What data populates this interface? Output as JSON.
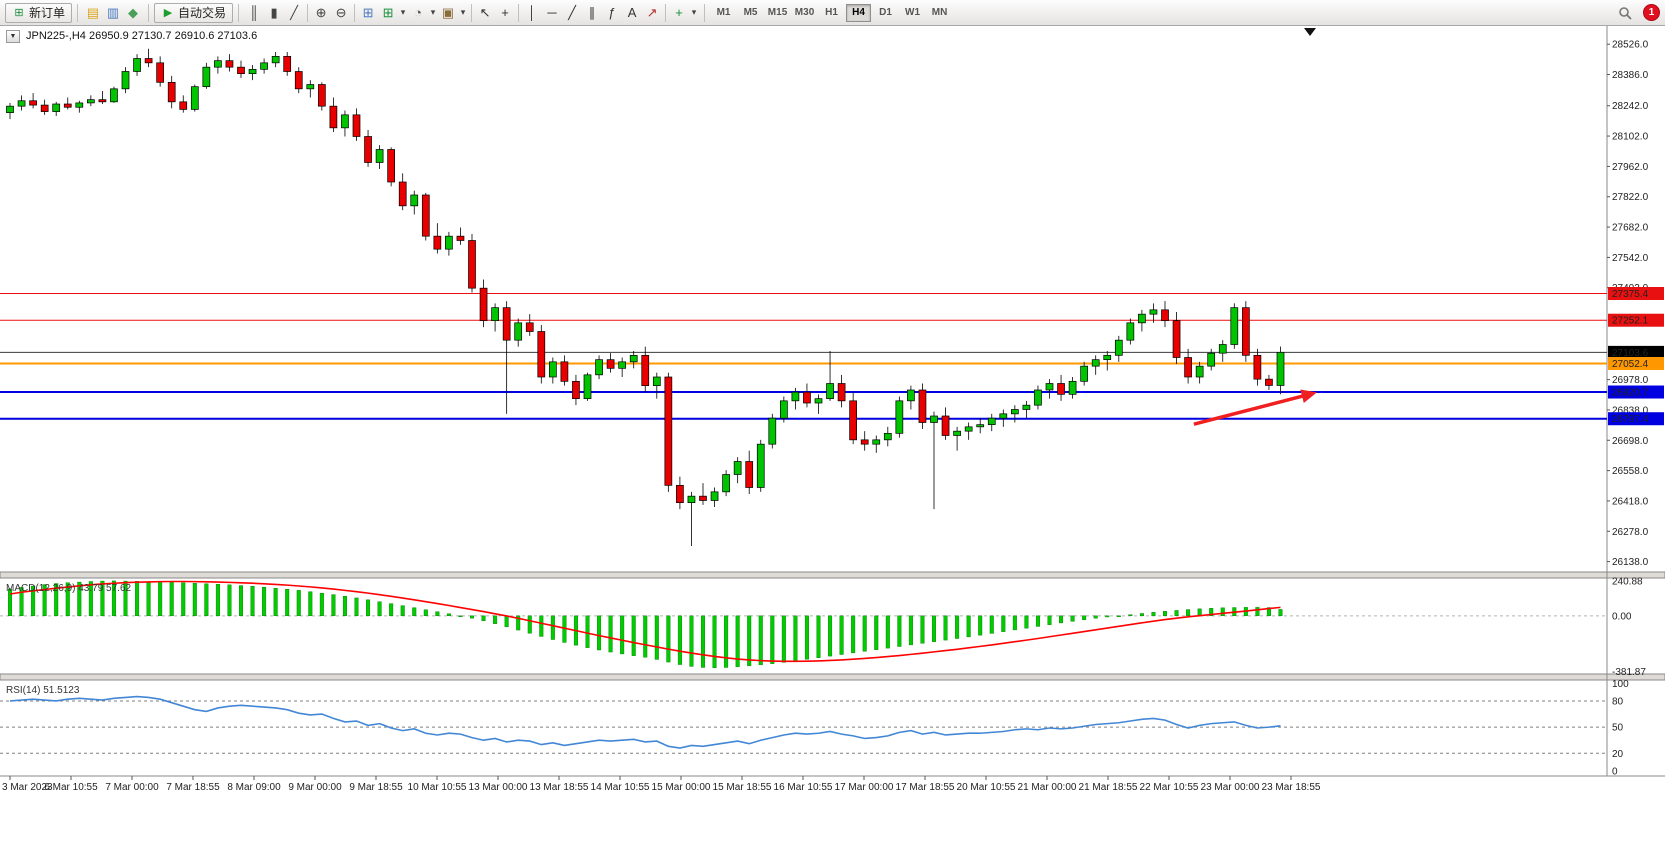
{
  "toolbar": {
    "new_order_label": "新订单",
    "auto_trading_label": "自动交易",
    "icons_a": [
      [
        {
          "name": "market-watch-icon",
          "glyph": "▤",
          "color": "#d9a61a"
        },
        {
          "name": "data-window-icon",
          "glyph": "▥",
          "color": "#4a78c0"
        },
        {
          "name": "navigator-icon",
          "glyph": "◆",
          "color": "#4aa05a"
        }
      ]
    ],
    "icons_b": [
      [
        {
          "name": "bar-chart-icon",
          "glyph": "║",
          "color": "#444444"
        },
        {
          "name": "candlestick-chart-icon",
          "glyph": "▮",
          "color": "#444444"
        },
        {
          "name": "line-chart-icon",
          "glyph": "╱",
          "color": "#444444"
        }
      ],
      [
        {
          "name": "zoom-in-icon",
          "glyph": "⊕",
          "color": "#444444"
        },
        {
          "name": "zoom-out-icon",
          "glyph": "⊖",
          "color": "#444444"
        }
      ],
      [
        {
          "name": "tile-windows-icon",
          "glyph": "⊞",
          "color": "#4a78c0"
        },
        {
          "name": "new-chart-icon",
          "glyph": "⊞",
          "color": "#1a8f3c"
        },
        {
          "name": "new-chart-dropdown-icon",
          "glyph": "▾",
          "color": "#444444"
        },
        {
          "name": "profiles-icon",
          "glyph": "◔",
          "color": "#555555"
        },
        {
          "name": "profiles-dropdown-icon",
          "glyph": "▾",
          "color": "#444444"
        },
        {
          "name": "templates-icon",
          "glyph": "▣",
          "color": "#8a6d3b"
        },
        {
          "name": "templates-dropdown-icon",
          "glyph": "▾",
          "color": "#444444"
        }
      ],
      [
        {
          "name": "cursor-icon",
          "glyph": "↖",
          "color": "#333333"
        },
        {
          "name": "crosshair-icon",
          "glyph": "+",
          "color": "#333333"
        }
      ],
      [
        {
          "name": "vertical-line-icon",
          "glyph": "│",
          "color": "#333333"
        },
        {
          "name": "horizontal-line-icon",
          "glyph": "─",
          "color": "#333333"
        },
        {
          "name": "trendline-icon",
          "glyph": "╱",
          "color": "#333333"
        },
        {
          "name": "equidistant-channel-icon",
          "glyph": "∥",
          "color": "#333333"
        },
        {
          "name": "fibonacci-icon",
          "glyph": "ƒ",
          "color": "#333333"
        },
        {
          "name": "text-icon",
          "glyph": "A",
          "color": "#333333"
        },
        {
          "name": "arrows-icon",
          "glyph": "↗",
          "color": "#b03030"
        }
      ],
      [
        {
          "name": "indicators-icon",
          "glyph": "+",
          "color": "#1a8f3c"
        },
        {
          "name": "indicators-dropdown-icon",
          "glyph": "▾",
          "color": "#444444"
        }
      ]
    ],
    "timeframes": [
      "M1",
      "M5",
      "M15",
      "M30",
      "H1",
      "H4",
      "D1",
      "W1",
      "MN"
    ],
    "active_timeframe": "H4",
    "badge_count": "1"
  },
  "chart": {
    "title": "JPN225-,H4 26950.9 27130.7 26910.6 27103.6"
  },
  "chart_data": {
    "type": "candlestick",
    "symbol": "JPN225-",
    "timeframe": "H4",
    "ohlc_current": {
      "open": 26950.9,
      "high": 27130.7,
      "low": 26910.6,
      "close": 27103.6
    },
    "price_axis": {
      "min": 26090,
      "max": 28610,
      "ticks": [
        28526.0,
        28386.0,
        28242.0,
        28102.0,
        27962.0,
        27822.0,
        27682.0,
        27542.0,
        27402.0,
        26978.0,
        26838.0,
        26698.0,
        26558.0,
        26418.0,
        26278.0,
        26138.0
      ]
    },
    "hlines": [
      {
        "price": 27375.4,
        "color": "#e81010",
        "width": 1
      },
      {
        "price": 27252.1,
        "color": "#e81010",
        "width": 1
      },
      {
        "price": 27103.6,
        "color": "#3c3c3c",
        "width": 1,
        "badge_color": "#000000"
      },
      {
        "price": 27052.4,
        "color": "#ff9800",
        "width": 2
      },
      {
        "price": 26920.7,
        "color": "#0000e0",
        "width": 2
      },
      {
        "price": 26797.4,
        "color": "#0000e0",
        "width": 2
      }
    ],
    "candles": [
      [
        28210,
        28255,
        28180,
        28240
      ],
      [
        28240,
        28290,
        28220,
        28265
      ],
      [
        28265,
        28300,
        28230,
        28245
      ],
      [
        28245,
        28270,
        28200,
        28215
      ],
      [
        28215,
        28260,
        28195,
        28250
      ],
      [
        28250,
        28280,
        28225,
        28235
      ],
      [
        28235,
        28265,
        28210,
        28255
      ],
      [
        28255,
        28290,
        28240,
        28270
      ],
      [
        28270,
        28310,
        28250,
        28260
      ],
      [
        28260,
        28330,
        28255,
        28320
      ],
      [
        28320,
        28420,
        28300,
        28400
      ],
      [
        28400,
        28480,
        28380,
        28460
      ],
      [
        28460,
        28505,
        28420,
        28440
      ],
      [
        28440,
        28470,
        28330,
        28350
      ],
      [
        28350,
        28380,
        28230,
        28260
      ],
      [
        28260,
        28290,
        28210,
        28225
      ],
      [
        28225,
        28340,
        28215,
        28330
      ],
      [
        28330,
        28440,
        28320,
        28420
      ],
      [
        28420,
        28470,
        28390,
        28450
      ],
      [
        28450,
        28480,
        28400,
        28420
      ],
      [
        28420,
        28450,
        28370,
        28390
      ],
      [
        28390,
        28430,
        28360,
        28410
      ],
      [
        28410,
        28460,
        28390,
        28440
      ],
      [
        28440,
        28490,
        28420,
        28470
      ],
      [
        28470,
        28490,
        28380,
        28400
      ],
      [
        28400,
        28420,
        28300,
        28320
      ],
      [
        28320,
        28360,
        28280,
        28340
      ],
      [
        28340,
        28350,
        28220,
        28240
      ],
      [
        28240,
        28280,
        28120,
        28140
      ],
      [
        28140,
        28220,
        28100,
        28200
      ],
      [
        28200,
        28230,
        28080,
        28100
      ],
      [
        28100,
        28130,
        27960,
        27980
      ],
      [
        27980,
        28060,
        27950,
        28040
      ],
      [
        28040,
        28050,
        27870,
        27890
      ],
      [
        27890,
        27930,
        27760,
        27780
      ],
      [
        27780,
        27850,
        27740,
        27830
      ],
      [
        27830,
        27840,
        27620,
        27640
      ],
      [
        27640,
        27700,
        27560,
        27580
      ],
      [
        27580,
        27660,
        27550,
        27640
      ],
      [
        27640,
        27680,
        27600,
        27620
      ],
      [
        27620,
        27650,
        27380,
        27400
      ],
      [
        27400,
        27440,
        27220,
        27250
      ],
      [
        27250,
        27330,
        27200,
        27310
      ],
      [
        27310,
        27340,
        26820,
        27160
      ],
      [
        27160,
        27260,
        27130,
        27240
      ],
      [
        27240,
        27280,
        27180,
        27200
      ],
      [
        27200,
        27230,
        26960,
        26990
      ],
      [
        26990,
        27080,
        26960,
        27060
      ],
      [
        27060,
        27090,
        26950,
        26970
      ],
      [
        26970,
        27000,
        26860,
        26890
      ],
      [
        26890,
        27010,
        26880,
        27000
      ],
      [
        27000,
        27090,
        26980,
        27070
      ],
      [
        27070,
        27100,
        27010,
        27030
      ],
      [
        27030,
        27080,
        26990,
        27060
      ],
      [
        27060,
        27110,
        27030,
        27090
      ],
      [
        27090,
        27130,
        26920,
        26950
      ],
      [
        26950,
        27010,
        26890,
        26990
      ],
      [
        26990,
        27010,
        26460,
        26490
      ],
      [
        26490,
        26530,
        26380,
        26410
      ],
      [
        26410,
        26460,
        26210,
        26440
      ],
      [
        26440,
        26500,
        26400,
        26420
      ],
      [
        26420,
        26480,
        26390,
        26460
      ],
      [
        26460,
        26560,
        26440,
        26540
      ],
      [
        26540,
        26620,
        26500,
        26600
      ],
      [
        26600,
        26650,
        26450,
        26480
      ],
      [
        26480,
        26700,
        26460,
        26680
      ],
      [
        26680,
        26820,
        26660,
        26800
      ],
      [
        26800,
        26900,
        26780,
        26880
      ],
      [
        26880,
        26940,
        26840,
        26920
      ],
      [
        26920,
        26960,
        26850,
        26870
      ],
      [
        26870,
        26910,
        26820,
        26890
      ],
      [
        26890,
        27110,
        26880,
        26960
      ],
      [
        26960,
        27000,
        26850,
        26880
      ],
      [
        26880,
        26920,
        26680,
        26700
      ],
      [
        26700,
        26740,
        26650,
        26680
      ],
      [
        26680,
        26720,
        26640,
        26700
      ],
      [
        26700,
        26760,
        26670,
        26730
      ],
      [
        26730,
        26900,
        26710,
        26880
      ],
      [
        26880,
        26950,
        26840,
        26930
      ],
      [
        26930,
        26960,
        26750,
        26780
      ],
      [
        26780,
        26830,
        26380,
        26810
      ],
      [
        26810,
        26850,
        26700,
        26720
      ],
      [
        26720,
        26760,
        26650,
        26740
      ],
      [
        26740,
        26780,
        26700,
        26760
      ],
      [
        26760,
        26800,
        26730,
        26770
      ],
      [
        26770,
        26820,
        26740,
        26800
      ],
      [
        26800,
        26840,
        26760,
        26820
      ],
      [
        26820,
        26860,
        26780,
        26840
      ],
      [
        26840,
        26880,
        26800,
        26860
      ],
      [
        26860,
        26950,
        26840,
        26930
      ],
      [
        26930,
        26980,
        26890,
        26960
      ],
      [
        26960,
        27000,
        26880,
        26910
      ],
      [
        26910,
        26990,
        26890,
        26970
      ],
      [
        26970,
        27060,
        26950,
        27040
      ],
      [
        27040,
        27090,
        27000,
        27070
      ],
      [
        27070,
        27110,
        27020,
        27090
      ],
      [
        27090,
        27180,
        27060,
        27160
      ],
      [
        27160,
        27260,
        27140,
        27240
      ],
      [
        27240,
        27300,
        27200,
        27280
      ],
      [
        27280,
        27330,
        27240,
        27300
      ],
      [
        27300,
        27340,
        27220,
        27250
      ],
      [
        27250,
        27290,
        27050,
        27080
      ],
      [
        27080,
        27120,
        26960,
        26990
      ],
      [
        26990,
        27060,
        26960,
        27040
      ],
      [
        27040,
        27120,
        27020,
        27100
      ],
      [
        27100,
        27160,
        27060,
        27140
      ],
      [
        27140,
        27330,
        27120,
        27310
      ],
      [
        27310,
        27340,
        27060,
        27090
      ],
      [
        27090,
        27120,
        26950,
        26980
      ],
      [
        26980,
        27000,
        26930,
        26951
      ],
      [
        26950.9,
        27130.7,
        26910.6,
        27103.6
      ]
    ],
    "times": [
      "3 Mar 2023",
      "6 Mar 10:55",
      "7 Mar 00:00",
      "7 Mar 18:55",
      "8 Mar 09:00",
      "9 Mar 00:00",
      "9 Mar 18:55",
      "10 Mar 10:55",
      "13 Mar 00:00",
      "13 Mar 18:55",
      "14 Mar 10:55",
      "15 Mar 00:00",
      "15 Mar 18:55",
      "16 Mar 10:55",
      "17 Mar 00:00",
      "17 Mar 18:55",
      "20 Mar 10:55",
      "21 Mar 00:00",
      "21 Mar 18:55",
      "22 Mar 10:55",
      "23 Mar 00:00",
      "23 Mar 18:55"
    ],
    "macd": {
      "label": "MACD(12,26,9) 43.79 57.62",
      "values": [
        43.79,
        57.62
      ],
      "axis": [
        240.88,
        0,
        -381.87
      ],
      "range": [
        -400,
        260
      ],
      "histogram": [
        185,
        195,
        205,
        215,
        222,
        228,
        232,
        236,
        239,
        240,
        239,
        237,
        235,
        233,
        230,
        227,
        224,
        221,
        217,
        213,
        208,
        203,
        197,
        190,
        183,
        175,
        166,
        156,
        146,
        135,
        123,
        110,
        97,
        84,
        70,
        56,
        42,
        28,
        14,
        0,
        -16,
        -34,
        -54,
        -76,
        -98,
        -120,
        -142,
        -163,
        -183,
        -202,
        -219,
        -235,
        -249,
        -262,
        -274,
        -285,
        -300,
        -318,
        -335,
        -348,
        -355,
        -357,
        -355,
        -350,
        -344,
        -337,
        -329,
        -320,
        -310,
        -299,
        -288,
        -277,
        -266,
        -255,
        -244,
        -233,
        -222,
        -211,
        -200,
        -189,
        -178,
        -167,
        -156,
        -145,
        -133,
        -121,
        -109,
        -97,
        -85,
        -73,
        -61,
        -49,
        -38,
        -27,
        -17,
        -8,
        0,
        8,
        16,
        24,
        31,
        37,
        43,
        48,
        52,
        55,
        57,
        58,
        58,
        57,
        44
      ],
      "signal": [
        150,
        162,
        172,
        181,
        190,
        198,
        206,
        213,
        219,
        224,
        228,
        231,
        233,
        235,
        236,
        236,
        235,
        234,
        232,
        230,
        227,
        224,
        220,
        216,
        211,
        205,
        199,
        192,
        184,
        175,
        166,
        156,
        145,
        134,
        122,
        110,
        97,
        84,
        71,
        57,
        43,
        29,
        14,
        -1,
        -17,
        -34,
        -51,
        -68,
        -85,
        -102,
        -119,
        -136,
        -152,
        -168,
        -184,
        -199,
        -214,
        -229,
        -243,
        -256,
        -268,
        -279,
        -289,
        -297,
        -303,
        -308,
        -311,
        -313,
        -313,
        -312,
        -310,
        -307,
        -303,
        -298,
        -293,
        -287,
        -280,
        -273,
        -265,
        -257,
        -248,
        -239,
        -230,
        -220,
        -210,
        -200,
        -189,
        -178,
        -167,
        -156,
        -144,
        -132,
        -120,
        -108,
        -96,
        -84,
        -72,
        -60,
        -48,
        -37,
        -26,
        -16,
        -7,
        1,
        9,
        17,
        25,
        33,
        41,
        50,
        58
      ]
    },
    "rsi": {
      "label": "RSI(14) 51.5123",
      "period": 14,
      "value": 51.5123,
      "axis": [
        100,
        80,
        50,
        20,
        0
      ],
      "levels": [
        80,
        50,
        20
      ],
      "range": [
        -6,
        104
      ],
      "values": [
        80,
        81,
        82,
        81,
        80,
        82,
        83,
        82,
        81,
        83,
        84,
        85,
        84,
        82,
        78,
        74,
        70,
        68,
        72,
        74,
        75,
        74,
        73,
        72,
        70,
        66,
        64,
        65,
        60,
        56,
        57,
        52,
        54,
        49,
        46,
        48,
        43,
        41,
        43,
        42,
        38,
        35,
        37,
        33,
        35,
        34,
        30,
        32,
        29,
        31,
        33,
        35,
        34,
        35,
        36,
        33,
        34,
        28,
        26,
        29,
        28,
        30,
        32,
        34,
        31,
        35,
        38,
        41,
        43,
        42,
        43,
        45,
        42,
        40,
        37,
        38,
        40,
        44,
        46,
        42,
        44,
        41,
        42,
        43,
        43,
        44,
        45,
        47,
        48,
        47,
        49,
        48,
        49,
        51,
        53,
        54,
        55,
        57,
        59,
        60,
        58,
        53,
        49,
        52,
        54,
        55,
        56,
        52,
        49,
        50,
        51.5
      ]
    },
    "arrow": {
      "from_index": 102.5,
      "from_price": 26772,
      "to_index": 112.8,
      "to_price": 26914,
      "color": "#f02020",
      "width": 3.5
    },
    "colors": {
      "up": "#00c400",
      "down": "#e80000",
      "outline": "#000000",
      "macd_hist": "#00cc00",
      "macd_signal": "#ff0000",
      "rsi_line": "#4287d6",
      "hline_red": "#e81010",
      "hline_orange": "#ff9800",
      "hline_blue": "#0000e0"
    }
  }
}
